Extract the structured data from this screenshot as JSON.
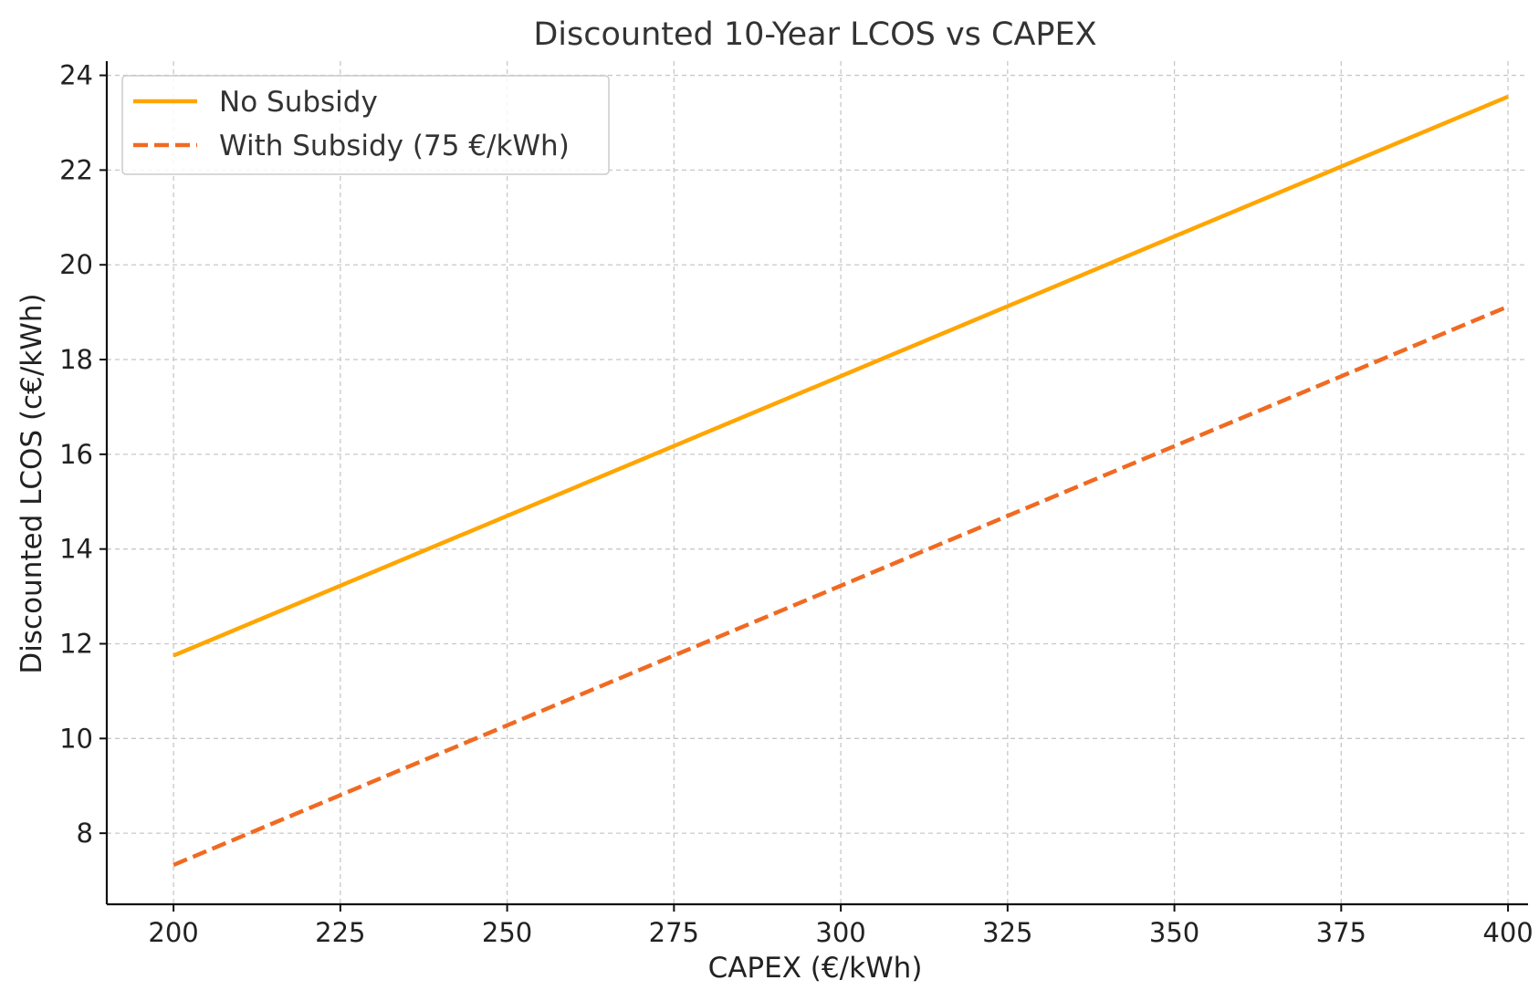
{
  "chart_data": {
    "type": "line",
    "title": "Discounted 10-Year LCOS vs CAPEX",
    "xlabel": "CAPEX (€/kWh)",
    "ylabel": "Discounted LCOS (c€/kWh)",
    "xlim": [
      190,
      403
    ],
    "ylim": [
      6.5,
      24.3
    ],
    "xticks": [
      200,
      225,
      250,
      275,
      300,
      325,
      350,
      375,
      400
    ],
    "yticks": [
      8,
      10,
      12,
      14,
      16,
      18,
      20,
      22,
      24
    ],
    "grid": true,
    "legend_position": "top-left",
    "series": [
      {
        "name": "No Subsidy",
        "color": "#FFA500",
        "style": "solid",
        "x": [
          200,
          400
        ],
        "y": [
          11.75,
          23.55
        ]
      },
      {
        "name": "With Subsidy (75 €/kWh)",
        "color": "#F06A22",
        "style": "dashed",
        "x": [
          200,
          400
        ],
        "y": [
          7.33,
          19.12
        ]
      }
    ]
  }
}
